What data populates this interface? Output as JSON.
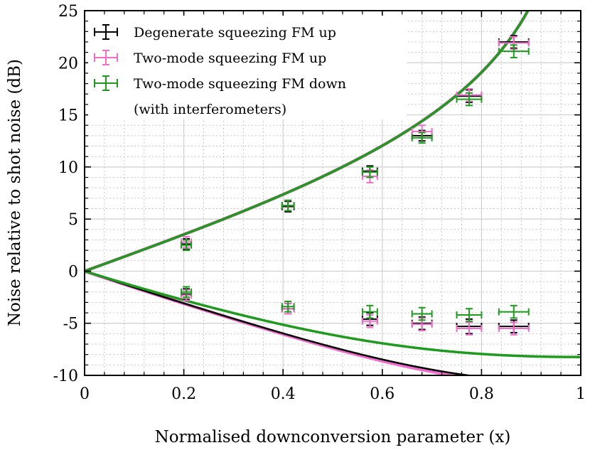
{
  "chart_data": {
    "type": "line",
    "title": "",
    "xlabel": "Normalised downconversion parameter (x)",
    "ylabel": "Noise relative to shot noise (dB)",
    "xlim": [
      0,
      1
    ],
    "ylim": [
      -10,
      25
    ],
    "x_ticks": [
      "0",
      "0.2",
      "0.4",
      "0.6",
      "0.8",
      "1"
    ],
    "y_ticks": [
      "-10",
      "-5",
      "0",
      "5",
      "10",
      "15",
      "20",
      "25"
    ],
    "grid": true,
    "legend_position": "top-left",
    "legend": [
      {
        "name": "Degenerate squeezing FM up",
        "color": "#000000"
      },
      {
        "name": "Two-mode squeezing FM up",
        "color": "#ee6ecb"
      },
      {
        "name": "Two-mode squeezing FM down",
        "color": "#1f9a1f"
      }
    ],
    "legend_note": "(with interferometers)",
    "series": [
      {
        "name": "Degenerate squeezing FM up",
        "color": "#000000",
        "points": [
          {
            "x": 0.205,
            "y": 2.6,
            "xerr": 0.01,
            "yerr": 0.5
          },
          {
            "x": 0.41,
            "y": 6.2,
            "xerr": 0.012,
            "yerr": 0.5
          },
          {
            "x": 0.575,
            "y": 9.6,
            "xerr": 0.015,
            "yerr": 0.5
          },
          {
            "x": 0.68,
            "y": 13.0,
            "xerr": 0.02,
            "yerr": 0.5
          },
          {
            "x": 0.775,
            "y": 16.8,
            "xerr": 0.025,
            "yerr": 0.6
          },
          {
            "x": 0.865,
            "y": 22.0,
            "xerr": 0.03,
            "yerr": 0.6
          },
          {
            "x": 0.205,
            "y": -2.2,
            "xerr": 0.01,
            "yerr": 0.5
          },
          {
            "x": 0.41,
            "y": -3.6,
            "xerr": 0.012,
            "yerr": 0.5
          },
          {
            "x": 0.575,
            "y": -4.6,
            "xerr": 0.015,
            "yerr": 0.6
          },
          {
            "x": 0.68,
            "y": -5.0,
            "xerr": 0.02,
            "yerr": 0.6
          },
          {
            "x": 0.775,
            "y": -5.3,
            "xerr": 0.025,
            "yerr": 0.7
          },
          {
            "x": 0.865,
            "y": -5.3,
            "xerr": 0.03,
            "yerr": 0.6
          }
        ]
      },
      {
        "name": "Two-mode squeezing FM up",
        "color": "#ee6ecb",
        "points": [
          {
            "x": 0.205,
            "y": 2.8,
            "xerr": 0.01,
            "yerr": 0.5
          },
          {
            "x": 0.41,
            "y": 6.3,
            "xerr": 0.012,
            "yerr": 0.5
          },
          {
            "x": 0.575,
            "y": 9.1,
            "xerr": 0.015,
            "yerr": 0.6
          },
          {
            "x": 0.68,
            "y": 13.4,
            "xerr": 0.02,
            "yerr": 0.6
          },
          {
            "x": 0.775,
            "y": 16.9,
            "xerr": 0.025,
            "yerr": 0.6
          },
          {
            "x": 0.865,
            "y": 21.9,
            "xerr": 0.03,
            "yerr": 0.6
          },
          {
            "x": 0.205,
            "y": -2.3,
            "xerr": 0.01,
            "yerr": 0.5
          },
          {
            "x": 0.41,
            "y": -3.6,
            "xerr": 0.012,
            "yerr": 0.5
          },
          {
            "x": 0.575,
            "y": -4.8,
            "xerr": 0.015,
            "yerr": 0.6
          },
          {
            "x": 0.68,
            "y": -5.1,
            "xerr": 0.02,
            "yerr": 0.6
          },
          {
            "x": 0.775,
            "y": -5.5,
            "xerr": 0.025,
            "yerr": 0.6
          },
          {
            "x": 0.865,
            "y": -5.5,
            "xerr": 0.03,
            "yerr": 0.6
          }
        ]
      },
      {
        "name": "Two-mode squeezing FM down",
        "color": "#1f9a1f",
        "points": [
          {
            "x": 0.205,
            "y": 2.5,
            "xerr": 0.01,
            "yerr": 0.5
          },
          {
            "x": 0.41,
            "y": 6.3,
            "xerr": 0.012,
            "yerr": 0.5
          },
          {
            "x": 0.575,
            "y": 9.5,
            "xerr": 0.015,
            "yerr": 0.5
          },
          {
            "x": 0.68,
            "y": 12.8,
            "xerr": 0.02,
            "yerr": 0.5
          },
          {
            "x": 0.775,
            "y": 16.5,
            "xerr": 0.025,
            "yerr": 0.6
          },
          {
            "x": 0.865,
            "y": 21.1,
            "xerr": 0.03,
            "yerr": 0.6
          },
          {
            "x": 0.205,
            "y": -2.0,
            "xerr": 0.01,
            "yerr": 0.5
          },
          {
            "x": 0.41,
            "y": -3.4,
            "xerr": 0.012,
            "yerr": 0.5
          },
          {
            "x": 0.575,
            "y": -3.9,
            "xerr": 0.015,
            "yerr": 0.6
          },
          {
            "x": 0.68,
            "y": -4.1,
            "xerr": 0.02,
            "yerr": 0.6
          },
          {
            "x": 0.775,
            "y": -4.2,
            "xerr": 0.025,
            "yerr": 0.6
          },
          {
            "x": 0.865,
            "y": -3.9,
            "xerr": 0.03,
            "yerr": 0.6
          }
        ]
      }
    ],
    "curves": [
      {
        "color": "#ee6ecb",
        "width": 4.5,
        "model": "ideal",
        "branch": "anti-squeezing"
      },
      {
        "color": "#ee6ecb",
        "width": 4.5,
        "model": "lossy",
        "loss_eff": 0.92,
        "branch": "squeezing"
      },
      {
        "color": "#000000",
        "width": 2.5,
        "model": "lossy",
        "loss_eff": 0.915,
        "branch": "squeezing"
      },
      {
        "color": "#1f9a1f",
        "width": 3.5,
        "model": "ideal",
        "branch": "anti-squeezing"
      },
      {
        "color": "#1f9a1f",
        "width": 3.5,
        "model": "lossy",
        "loss_eff": 0.85,
        "branch": "squeezing"
      }
    ]
  }
}
